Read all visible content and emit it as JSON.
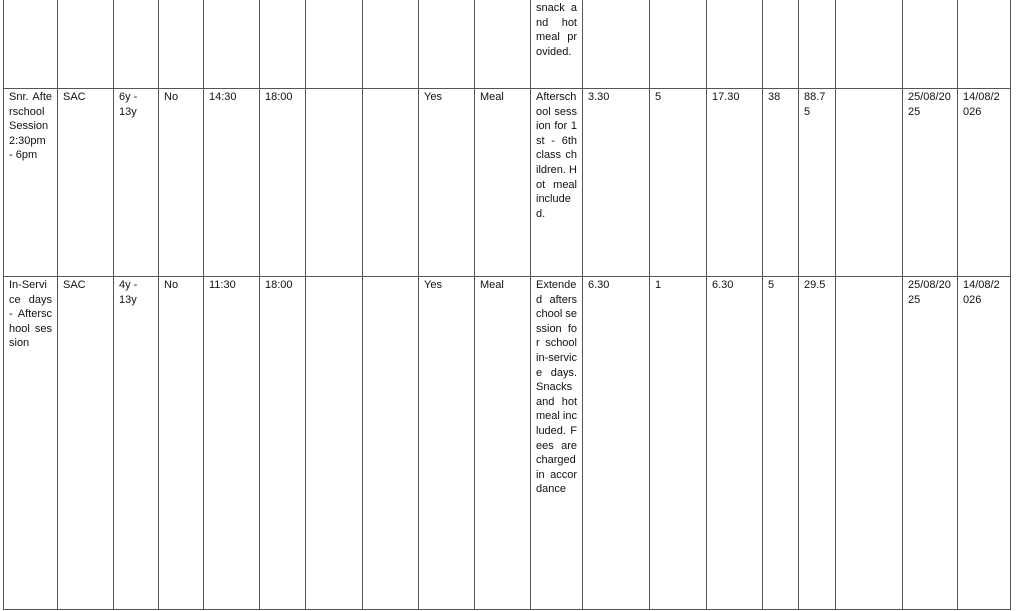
{
  "rows": [
    {
      "name": "",
      "type": "",
      "ages": "",
      "col4": "",
      "start": "",
      "end": "",
      "col7": "",
      "col8": "",
      "col9": "",
      "food": "",
      "description": "snack and hot meal provided.",
      "c12": "",
      "c13": "",
      "c14": "",
      "c15": "",
      "c16": "",
      "c17": "",
      "start_date": "",
      "end_date": ""
    },
    {
      "name": "Snr. Afterschool Session 2:30pm - 6pm",
      "type": "SAC",
      "ages": "6y - 13y",
      "col4": "No",
      "start": "14:30",
      "end": "18:00",
      "col7": "",
      "col8": "",
      "col9": "Yes",
      "food": "Meal",
      "description": "Afterschool session for 1st - 6th class children. Hot meal included.",
      "c12": "3.30",
      "c13": "5",
      "c14": "17.30",
      "c15": "38",
      "c16": "88.75",
      "c17": "",
      "start_date": "25/08/2025",
      "end_date": "14/08/2026"
    },
    {
      "name": "In-Service days - Afterschool session",
      "type": "SAC",
      "ages": "4y - 13y",
      "col4": "No",
      "start": "11:30",
      "end": "18:00",
      "col7": "",
      "col8": "",
      "col9": "Yes",
      "food": "Meal",
      "description": "Extended afterschool session for school in-service days. Snacks and hot meal included. Fees are charged in accordance",
      "c12": "6.30",
      "c13": "1",
      "c14": "6.30",
      "c15": "5",
      "c16": "29.5",
      "c17": "",
      "start_date": "25/08/2025",
      "end_date": "14/08/2026"
    }
  ]
}
